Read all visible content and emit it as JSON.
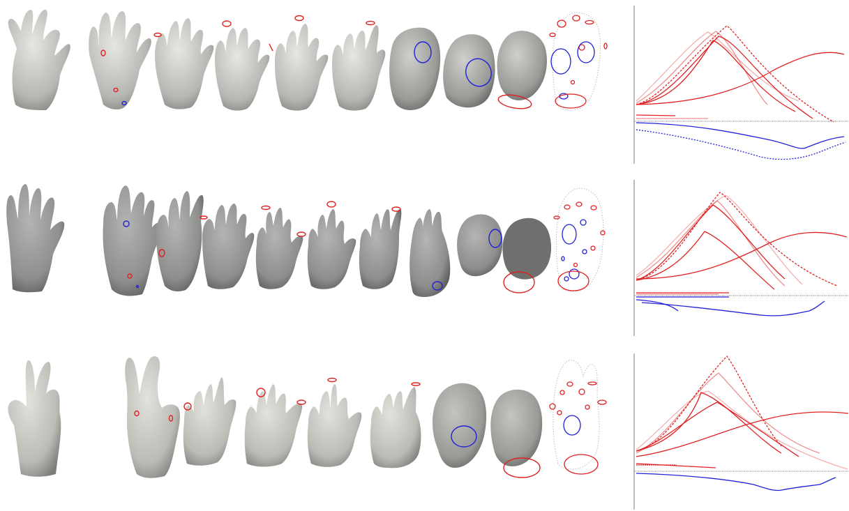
{
  "figure": {
    "rows": [
      {
        "id": "row-0",
        "stages": 9,
        "plot": {
          "red_curves": 7,
          "blue_curves": 2
        }
      },
      {
        "id": "row-1",
        "stages": 10,
        "plot": {
          "red_curves": 7,
          "blue_curves": 2
        }
      },
      {
        "id": "row-2",
        "stages": 9,
        "plot": {
          "red_curves": 7,
          "blue_curves": 1
        }
      }
    ],
    "colors": {
      "background": "#ffffff",
      "shape_light": "#cfcfcb",
      "shape_mid": "#a9a9a6",
      "shape_dark": "#6f6f6d",
      "red_marker": "#e02020",
      "blue_marker": "#2020d8",
      "axis": "#555555"
    }
  }
}
